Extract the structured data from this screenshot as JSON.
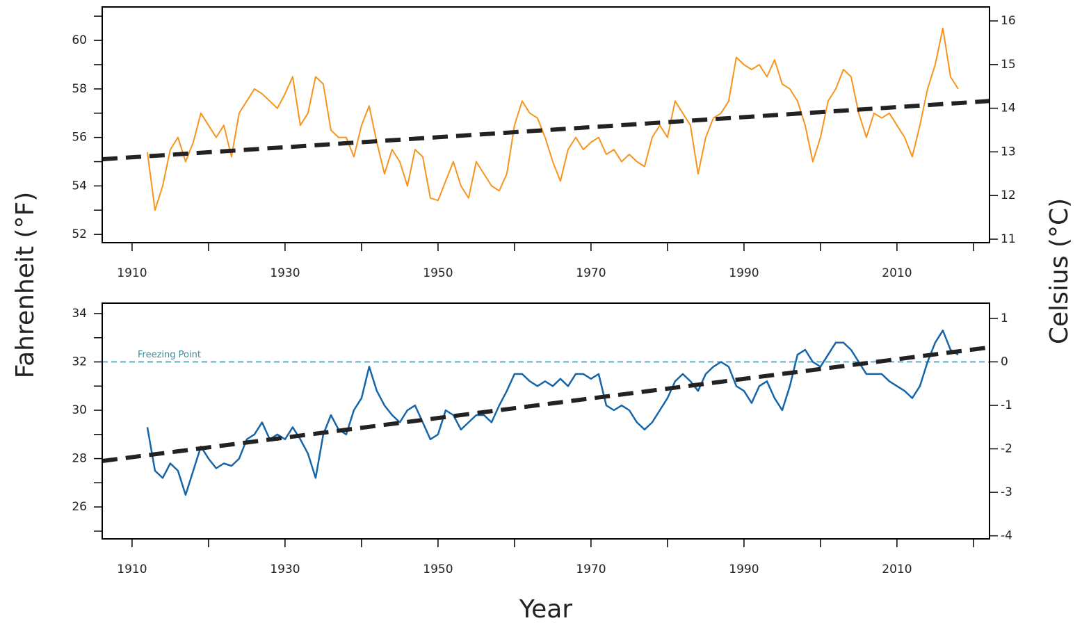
{
  "chart_data": [
    {
      "type": "line",
      "ylabel": "Fahrenheit (°F)",
      "y2label": "Celsius (°C)",
      "xlabel": "Year",
      "xlim": [
        1906.1,
        2022.1
      ],
      "xticks": [
        1910,
        1930,
        1950,
        1970,
        1990,
        2010
      ],
      "xminorticks": [
        1920,
        1940,
        1960,
        1980,
        2000,
        2020
      ],
      "ylim": [
        51.66,
        61.38
      ],
      "yticks": [
        52,
        54,
        56,
        58,
        60
      ],
      "yminorticks": [
        53,
        55,
        57,
        59,
        61
      ],
      "y2lim": [
        10.92,
        16.32
      ],
      "y2ticks": [
        11,
        12,
        13,
        14,
        15,
        16
      ],
      "x": [
        1912,
        1913,
        1914,
        1915,
        1916,
        1917,
        1918,
        1919,
        1920,
        1921,
        1922,
        1923,
        1924,
        1925,
        1926,
        1927,
        1928,
        1929,
        1930,
        1931,
        1932,
        1933,
        1934,
        1935,
        1936,
        1937,
        1938,
        1939,
        1940,
        1941,
        1942,
        1943,
        1944,
        1945,
        1946,
        1947,
        1948,
        1949,
        1950,
        1951,
        1952,
        1953,
        1954,
        1955,
        1956,
        1957,
        1958,
        1959,
        1960,
        1961,
        1962,
        1963,
        1964,
        1965,
        1966,
        1967,
        1968,
        1969,
        1970,
        1971,
        1972,
        1973,
        1974,
        1975,
        1976,
        1977,
        1978,
        1979,
        1980,
        1981,
        1982,
        1983,
        1984,
        1985,
        1986,
        1987,
        1988,
        1989,
        1990,
        1991,
        1992,
        1993,
        1994,
        1995,
        1996,
        1997,
        1998,
        1999,
        2000,
        2001,
        2002,
        2003,
        2004,
        2005,
        2006,
        2007,
        2008,
        2009,
        2010,
        2011,
        2012,
        2013,
        2014,
        2015,
        2016,
        2017,
        2018
      ],
      "series": [
        {
          "color": "#f7941d",
          "width": 2,
          "values": [
            55.4,
            53.0,
            54.0,
            55.5,
            56.0,
            55.0,
            55.8,
            57.0,
            56.5,
            56.0,
            56.5,
            55.2,
            57.0,
            57.5,
            58.0,
            57.8,
            57.5,
            57.2,
            57.8,
            58.5,
            56.5,
            57.0,
            58.5,
            58.2,
            56.3,
            56.0,
            56.0,
            55.2,
            56.5,
            57.3,
            55.8,
            54.5,
            55.5,
            55.0,
            54.0,
            55.5,
            55.2,
            53.5,
            53.4,
            54.2,
            55.0,
            54.0,
            53.5,
            55.0,
            54.5,
            54.0,
            53.8,
            54.5,
            56.5,
            57.5,
            57.0,
            56.8,
            56.0,
            55.0,
            54.2,
            55.5,
            56.0,
            55.5,
            55.8,
            56.0,
            55.3,
            55.5,
            55.0,
            55.3,
            55.0,
            54.8,
            56.0,
            56.5,
            56.0,
            57.5,
            57.0,
            56.5,
            54.5,
            56.0,
            56.8,
            57.0,
            57.5,
            59.3,
            59.0,
            58.8,
            59.0,
            58.5,
            59.2,
            58.2,
            58.0,
            57.5,
            56.5,
            55.0,
            56.0,
            57.5,
            58.0,
            58.8,
            58.5,
            57.0,
            56.0,
            57.0,
            56.8,
            57.0,
            56.5,
            56.0,
            55.2,
            56.5,
            58.0,
            59.0,
            60.5,
            58.5,
            58.0
          ]
        },
        {
          "color": "#222222",
          "width": 6,
          "dash": true,
          "x": [
            1906.1,
            2022.1
          ],
          "values": [
            55.1,
            57.5
          ]
        }
      ]
    },
    {
      "type": "line",
      "xlim": [
        1906.1,
        2022.1
      ],
      "xticks": [
        1910,
        1930,
        1950,
        1970,
        1990,
        2010
      ],
      "xminorticks": [
        1920,
        1940,
        1960,
        1980,
        2000,
        2020
      ],
      "ylim": [
        24.68,
        34.43
      ],
      "yticks": [
        26,
        28,
        30,
        32,
        34
      ],
      "yminorticks": [
        25,
        27,
        29,
        31,
        33
      ],
      "y2lim": [
        -4.07,
        1.35
      ],
      "y2ticks": [
        -4,
        -3,
        -2,
        -1,
        0,
        1
      ],
      "hline": {
        "value": 32,
        "label": "Freezing Point",
        "color": "#3a8a99"
      },
      "x": [
        1912,
        1913,
        1914,
        1915,
        1916,
        1917,
        1918,
        1919,
        1920,
        1921,
        1922,
        1923,
        1924,
        1925,
        1926,
        1927,
        1928,
        1929,
        1930,
        1931,
        1932,
        1933,
        1934,
        1935,
        1936,
        1937,
        1938,
        1939,
        1940,
        1941,
        1942,
        1943,
        1944,
        1945,
        1946,
        1947,
        1948,
        1949,
        1950,
        1951,
        1952,
        1953,
        1954,
        1955,
        1956,
        1957,
        1958,
        1959,
        1960,
        1961,
        1962,
        1963,
        1964,
        1965,
        1966,
        1967,
        1968,
        1969,
        1970,
        1971,
        1972,
        1973,
        1974,
        1975,
        1976,
        1977,
        1978,
        1979,
        1980,
        1981,
        1982,
        1983,
        1984,
        1985,
        1986,
        1987,
        1988,
        1989,
        1990,
        1991,
        1992,
        1993,
        1994,
        1995,
        1996,
        1997,
        1998,
        1999,
        2000,
        2001,
        2002,
        2003,
        2004,
        2005,
        2006,
        2007,
        2008,
        2009,
        2010,
        2011,
        2012,
        2013,
        2014,
        2015,
        2016,
        2017,
        2018
      ],
      "series": [
        {
          "color": "#1565a8",
          "width": 2.5,
          "values": [
            29.3,
            27.5,
            27.2,
            27.8,
            27.5,
            26.5,
            27.5,
            28.5,
            28.0,
            27.6,
            27.8,
            27.7,
            28.0,
            28.8,
            29.0,
            29.5,
            28.8,
            29.0,
            28.8,
            29.3,
            28.8,
            28.2,
            27.2,
            29.0,
            29.8,
            29.2,
            29.0,
            30.0,
            30.5,
            31.8,
            30.8,
            30.2,
            29.8,
            29.5,
            30.0,
            30.2,
            29.5,
            28.8,
            29.0,
            30.0,
            29.8,
            29.2,
            29.5,
            29.8,
            29.8,
            29.5,
            30.2,
            30.8,
            31.5,
            31.5,
            31.2,
            31.0,
            31.2,
            31.0,
            31.3,
            31.0,
            31.5,
            31.5,
            31.3,
            31.5,
            30.2,
            30.0,
            30.2,
            30.0,
            29.5,
            29.2,
            29.5,
            30.0,
            30.5,
            31.2,
            31.5,
            31.2,
            30.8,
            31.5,
            31.8,
            32.0,
            31.8,
            31.0,
            30.8,
            30.3,
            31.0,
            31.2,
            30.5,
            30.0,
            31.0,
            32.3,
            32.5,
            32.0,
            31.8,
            32.3,
            32.8,
            32.8,
            32.5,
            32.0,
            31.5,
            31.5,
            31.5,
            31.2,
            31.0,
            30.8,
            30.5,
            31.0,
            32.0,
            32.8,
            33.3,
            32.5,
            32.3
          ]
        },
        {
          "color": "#222222",
          "width": 6,
          "dash": true,
          "x": [
            1906.1,
            2022.1
          ],
          "values": [
            27.9,
            32.6
          ]
        }
      ]
    }
  ]
}
